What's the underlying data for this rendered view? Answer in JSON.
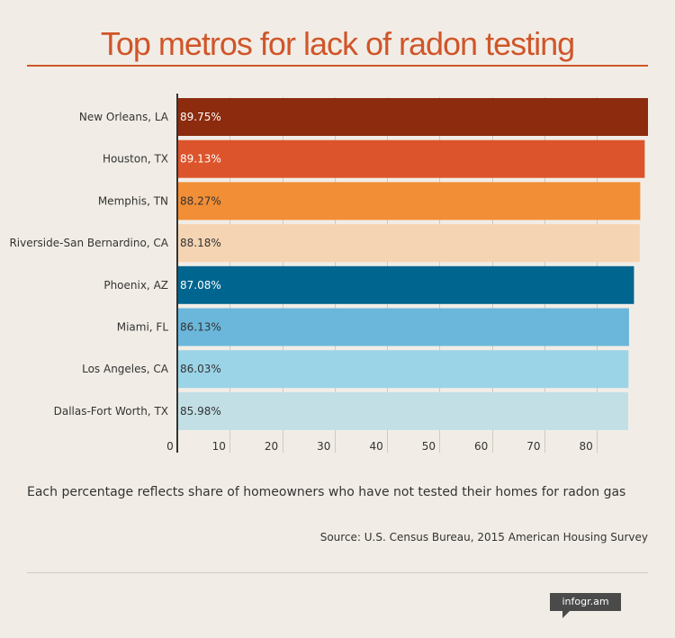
{
  "header": {
    "title": "Top metros for lack of radon testing"
  },
  "footer": {
    "note": "Each percentage reflects share of homeowners who have not tested their homes for radon gas",
    "source": "Source: U.S. Census Bureau, 2015 American Housing Survey",
    "brand": "infogr.am"
  },
  "chart_data": {
    "type": "bar",
    "orientation": "horizontal",
    "title": "Top metros for lack of radon testing",
    "categories": [
      "New Orleans, LA",
      "Houston, TX",
      "Memphis, TN",
      "Riverside-San Bernardino, CA",
      "Phoenix, AZ",
      "Miami, FL",
      "Los Angeles, CA",
      "Dallas-Fort Worth, TX"
    ],
    "values": [
      89.75,
      89.13,
      88.27,
      88.18,
      87.08,
      86.13,
      86.03,
      85.98
    ],
    "value_labels": [
      "89.75%",
      "89.13%",
      "88.27%",
      "88.18%",
      "87.08%",
      "86.13%",
      "86.03%",
      "85.98%"
    ],
    "colors": [
      "#8c2b0e",
      "#dc542b",
      "#f28e36",
      "#f5d4b3",
      "#00668f",
      "#6ab7db",
      "#9cd4e7",
      "#c1dfe5"
    ],
    "label_colors": [
      "#ffffff",
      "#ffffff",
      "#333333",
      "#333333",
      "#ffffff",
      "#333333",
      "#333333",
      "#333333"
    ],
    "xlim": [
      0,
      89.75
    ],
    "x_ticks": [
      0,
      10,
      20,
      30,
      40,
      50,
      60,
      70,
      80
    ],
    "grid": true
  }
}
